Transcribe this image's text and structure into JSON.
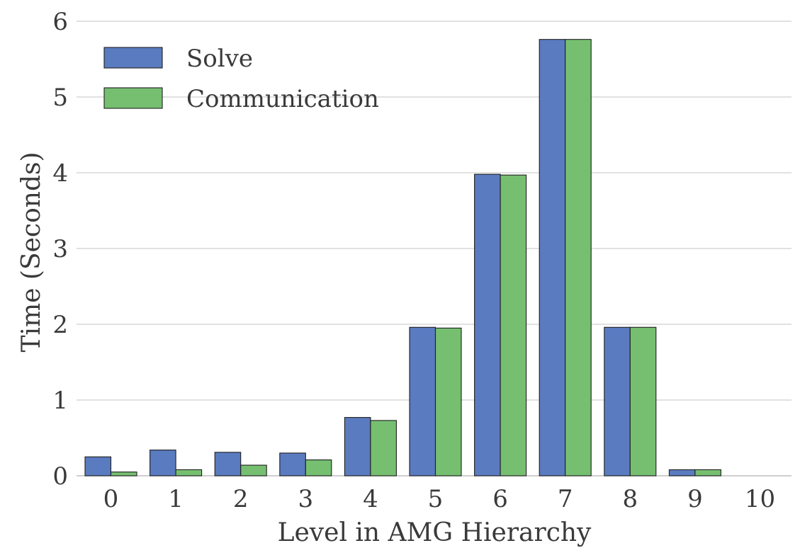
{
  "chart_data": {
    "type": "bar",
    "title": "",
    "xlabel": "Level in AMG Hierarchy",
    "ylabel": "Time (Seconds)",
    "categories": [
      "0",
      "1",
      "2",
      "3",
      "4",
      "5",
      "6",
      "7",
      "8",
      "9",
      "10"
    ],
    "ylim": [
      0,
      6
    ],
    "yticks": [
      "0",
      "1",
      "2",
      "3",
      "4",
      "5",
      "6"
    ],
    "grid": "horizontal",
    "legend_position": "top-left",
    "series": [
      {
        "name": "Solve",
        "color": "#5a7bbf",
        "values": [
          0.25,
          0.34,
          0.31,
          0.3,
          0.77,
          1.96,
          3.98,
          5.76,
          1.96,
          0.08,
          0
        ]
      },
      {
        "name": "Communication",
        "color": "#76bf71",
        "values": [
          0.05,
          0.08,
          0.14,
          0.21,
          0.73,
          1.95,
          3.97,
          5.76,
          1.96,
          0.08,
          0
        ]
      }
    ]
  }
}
